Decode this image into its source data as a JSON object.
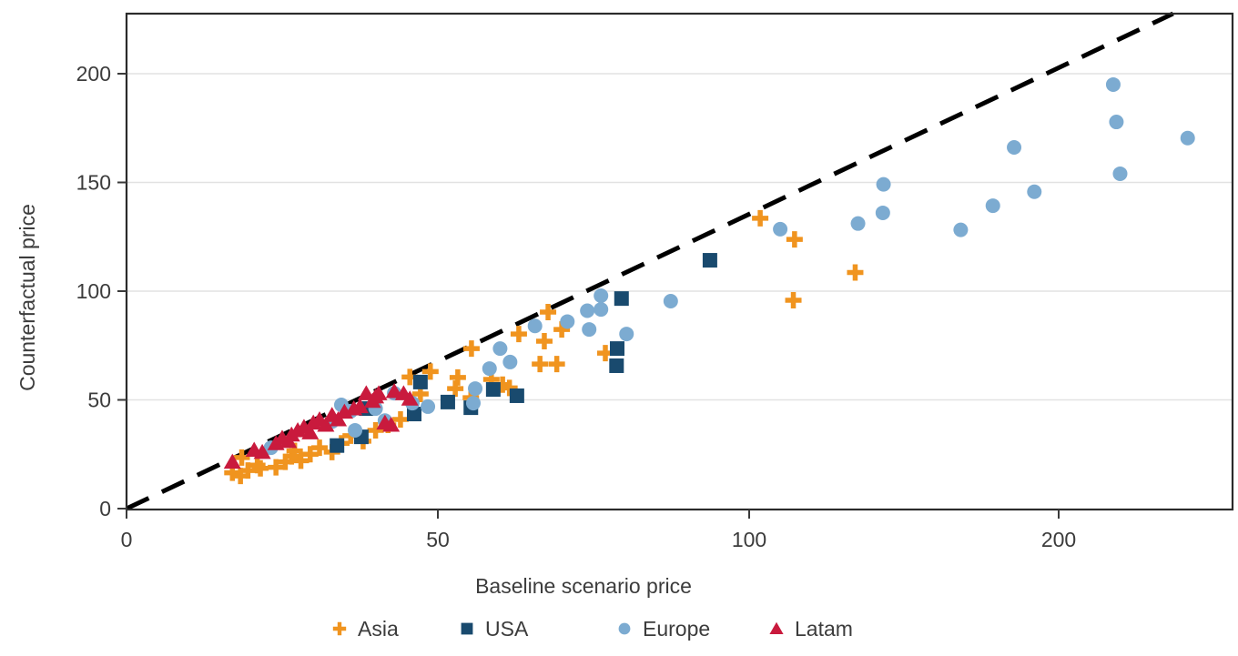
{
  "chart_data": {
    "type": "scatter",
    "title": "",
    "xlabel": "Baseline scenario price",
    "ylabel": "Counterfactual price",
    "x_ticks": [
      0,
      50,
      100,
      200
    ],
    "y_ticks": [
      0,
      50,
      100,
      150,
      200
    ],
    "x_scale": "piecewise: linear from 0 to 100, log2 above 100 (ticks 0/50/100/200 appear equally spaced)",
    "y_scale": "linear",
    "xlim": [
      0,
      294
    ],
    "ylim": [
      -2,
      229
    ],
    "grid": "horizontal gridlines at y ticks, light gray",
    "grid_color": "#e2e2e2",
    "axis_color": "#2b2b2b",
    "text_color": "#3c3c3c",
    "legend_position": "bottom center, horizontal row",
    "reference_line": {
      "meaning": "dashed parity reference line from origin to top-right",
      "style": "dashed",
      "color": "#000000",
      "from": [
        0,
        0
      ],
      "to": [
        258.4,
        227.6
      ]
    },
    "series": [
      {
        "name": "Asia",
        "marker": "plus",
        "color": "#f0941f",
        "points": [
          [
            17,
            16.5
          ],
          [
            18.3,
            15
          ],
          [
            19.5,
            17.5
          ],
          [
            21.5,
            18.5
          ],
          [
            18.5,
            23.5
          ],
          [
            21,
            20
          ],
          [
            24,
            19
          ],
          [
            25.5,
            21.5
          ],
          [
            26.5,
            24
          ],
          [
            28,
            22
          ],
          [
            27,
            26.5
          ],
          [
            29.5,
            25
          ],
          [
            31,
            28
          ],
          [
            33,
            26
          ],
          [
            34.5,
            30
          ],
          [
            36,
            33.5
          ],
          [
            38,
            31
          ],
          [
            40,
            36
          ],
          [
            42,
            38.5
          ],
          [
            44,
            41
          ],
          [
            45.5,
            60.5
          ],
          [
            47.2,
            52.7
          ],
          [
            48.8,
            63
          ],
          [
            52.8,
            55.2
          ],
          [
            53.2,
            60.3
          ],
          [
            55.3,
            51
          ],
          [
            55.4,
            73.6
          ],
          [
            58.6,
            59.4
          ],
          [
            60.4,
            57
          ],
          [
            61.5,
            55.5
          ],
          [
            63,
            80.3
          ],
          [
            66.4,
            66.5
          ],
          [
            69.1,
            66.5
          ],
          [
            67.1,
            77
          ],
          [
            67.7,
            90.4
          ],
          [
            69.9,
            82.4
          ],
          [
            76.9,
            71.5
          ],
          [
            102.5,
            133.5
          ],
          [
            110.7,
            123.8
          ],
          [
            110.4,
            95.8
          ],
          [
            126.8,
            108.6
          ]
        ]
      },
      {
        "name": "USA",
        "marker": "square",
        "color": "#194a6e",
        "points": [
          [
            33.8,
            29
          ],
          [
            37.7,
            33
          ],
          [
            38.5,
            46
          ],
          [
            46.2,
            43.5
          ],
          [
            47.2,
            58.2
          ],
          [
            51.6,
            49
          ],
          [
            55.3,
            46.4
          ],
          [
            58.9,
            54.8
          ],
          [
            62.7,
            51.9
          ],
          [
            78.7,
            65.7
          ],
          [
            78.8,
            73.6
          ],
          [
            79.5,
            96.6
          ],
          [
            93.7,
            114.2
          ]
        ]
      },
      {
        "name": "Europe",
        "marker": "circle",
        "color": "#7cabd1",
        "points": [
          [
            23.2,
            28
          ],
          [
            33,
            40
          ],
          [
            34.5,
            47.7
          ],
          [
            36,
            44.8
          ],
          [
            36.7,
            36
          ],
          [
            40,
            46
          ],
          [
            41.5,
            40.5
          ],
          [
            43,
            53.1
          ],
          [
            45.9,
            48.5
          ],
          [
            48.4,
            46.9
          ],
          [
            55.7,
            48.5
          ],
          [
            56,
            55.2
          ],
          [
            58.3,
            64.4
          ],
          [
            60,
            73.6
          ],
          [
            61.6,
            67.4
          ],
          [
            65.6,
            84
          ],
          [
            70.8,
            86
          ],
          [
            74,
            91
          ],
          [
            74.3,
            82.4
          ],
          [
            76.2,
            97.9
          ],
          [
            76.2,
            91.6
          ],
          [
            80.3,
            80.3
          ],
          [
            87.4,
            95.4
          ],
          [
            107.2,
            128.5
          ],
          [
            127.6,
            131.1
          ],
          [
            134.9,
            136
          ],
          [
            135.1,
            149.1
          ],
          [
            160.6,
            128.2
          ],
          [
            172.6,
            139.3
          ],
          [
            181,
            166.1
          ],
          [
            189.4,
            145.7
          ],
          [
            226,
            195
          ],
          [
            227.6,
            177.8
          ],
          [
            229.5,
            154
          ],
          [
            267,
            170.4
          ]
        ]
      },
      {
        "name": "Latam",
        "marker": "triangle",
        "color": "#c91a3d",
        "points": [
          [
            17,
            21.5
          ],
          [
            20.5,
            27
          ],
          [
            21.8,
            26
          ],
          [
            24,
            30
          ],
          [
            25,
            32.5
          ],
          [
            26,
            31
          ],
          [
            26.5,
            34
          ],
          [
            27.5,
            36
          ],
          [
            28.5,
            37.5
          ],
          [
            29.5,
            35
          ],
          [
            30,
            39.5
          ],
          [
            31,
            41
          ],
          [
            32,
            38.5
          ],
          [
            33,
            43
          ],
          [
            34,
            41
          ],
          [
            35,
            44.5
          ],
          [
            36.5,
            46
          ],
          [
            37.5,
            47
          ],
          [
            38.5,
            53
          ],
          [
            39.5,
            49.5
          ],
          [
            40,
            51.5
          ],
          [
            40.5,
            53
          ],
          [
            41.5,
            39.5
          ],
          [
            42.5,
            38.5
          ],
          [
            43,
            54
          ],
          [
            44.5,
            53
          ],
          [
            45.5,
            50.5
          ]
        ]
      }
    ]
  }
}
